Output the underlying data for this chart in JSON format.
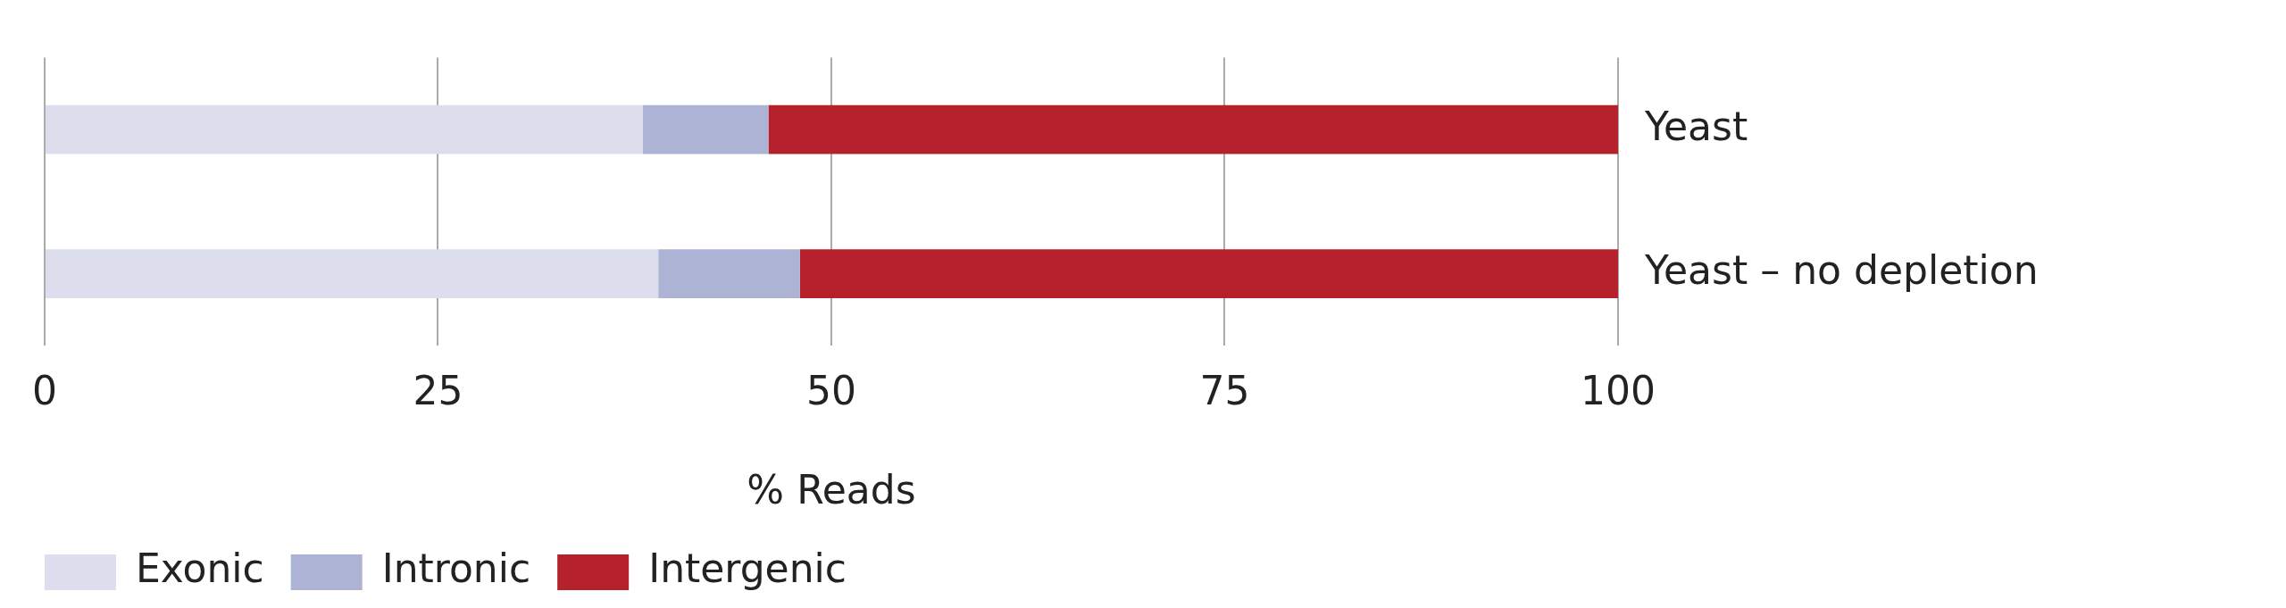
{
  "chart_data": {
    "type": "bar",
    "orientation": "horizontal",
    "stacked": true,
    "xlabel": "% Reads",
    "categories": [
      "Yeast",
      "Yeast – no depletion"
    ],
    "series": [
      {
        "name": "Exonic",
        "color": "#dcdeed",
        "values": [
          38,
          39
        ]
      },
      {
        "name": "Intronic",
        "color": "#adb3d4",
        "values": [
          8,
          9
        ]
      },
      {
        "name": "Intergenic",
        "color": "#b5222b",
        "values": [
          54,
          52
        ]
      }
    ],
    "xlim": [
      0,
      100
    ],
    "xticks": [
      0,
      25,
      50,
      75,
      100
    ],
    "grid": "x",
    "legend": "bottom"
  }
}
